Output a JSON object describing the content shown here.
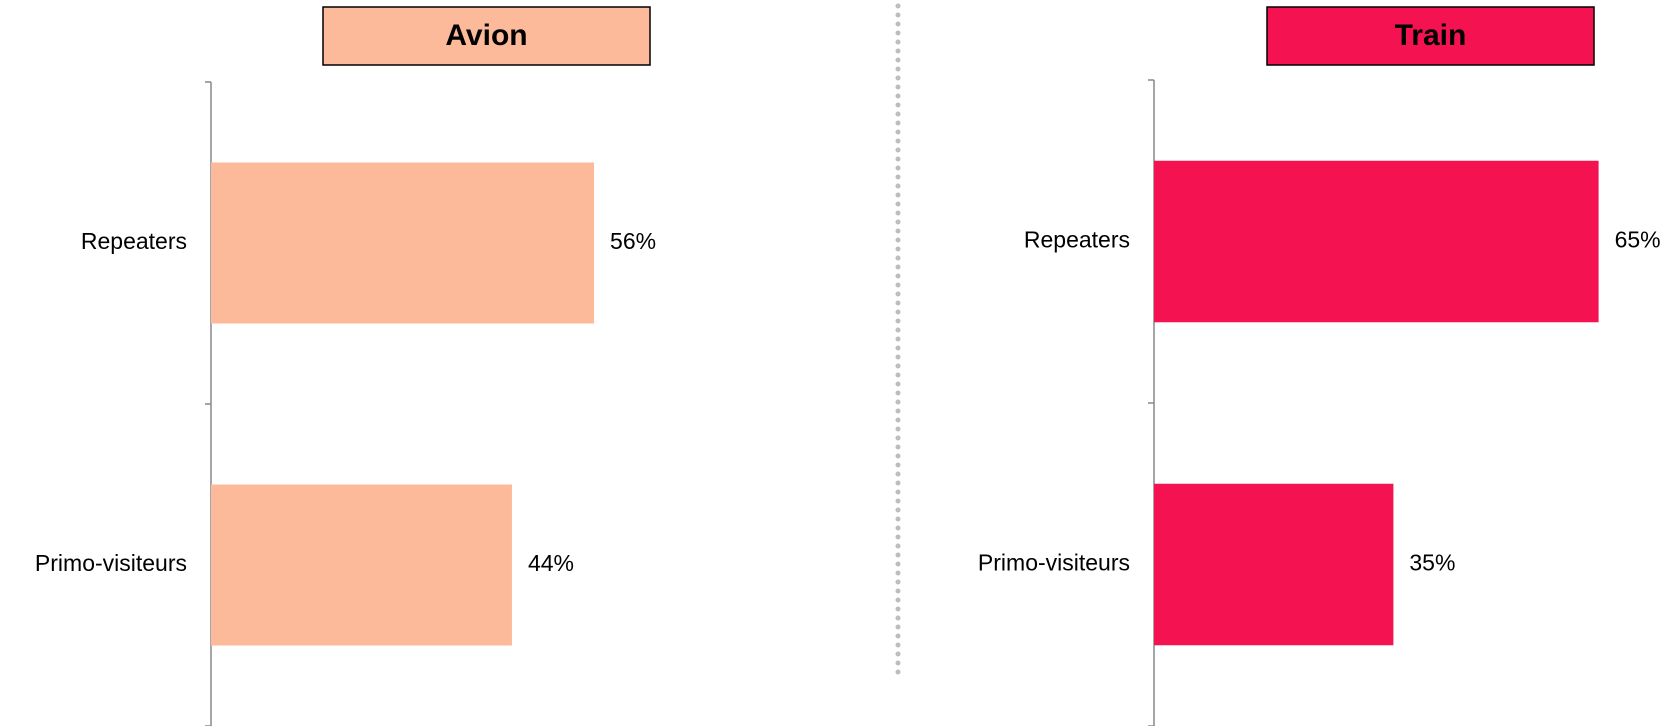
{
  "chart_data": [
    {
      "type": "bar",
      "orientation": "horizontal",
      "title": "Avion",
      "color": "#fdba9b",
      "categories": [
        "Repeaters",
        "Primo-visiteurs"
      ],
      "values": [
        56,
        44
      ],
      "value_labels": [
        "56%",
        "44%"
      ]
    },
    {
      "type": "bar",
      "orientation": "horizontal",
      "title": "Train",
      "color": "#f41350",
      "categories": [
        "Repeaters",
        "Primo-visiteurs"
      ],
      "values": [
        65,
        35
      ],
      "value_labels": [
        "65%",
        "35%"
      ]
    }
  ]
}
